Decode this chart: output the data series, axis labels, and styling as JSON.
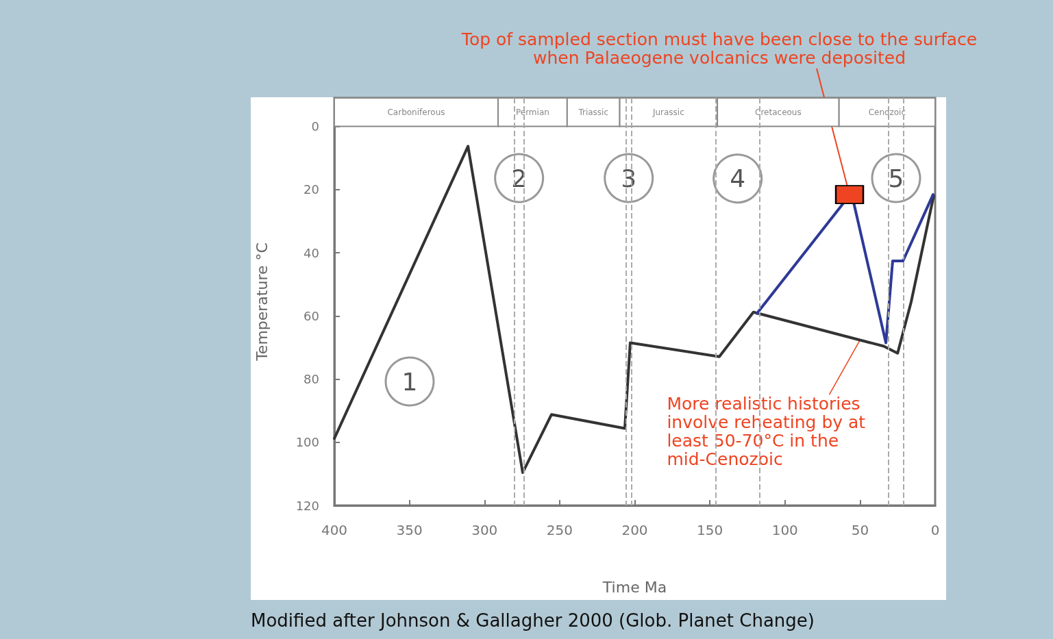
{
  "chart_data": {
    "type": "line",
    "xlabel": "Time Ma",
    "ylabel": "Temperature °C",
    "x": [
      400,
      311,
      274.6,
      255.4,
      206.6,
      203,
      143.7,
      121,
      34.2,
      25,
      16,
      1
    ],
    "series": [
      {
        "color": "#333333",
        "values": [
          98.8,
          6.3,
          109.6,
          91.2,
          95.6,
          68.5,
          72.9,
          58.8,
          69.6,
          71.8,
          55.6,
          22
        ]
      },
      {
        "color": "#2e3a96",
        "x": [
          118.6,
          60.6,
          54.3,
          32.8,
          28.3,
          21.4,
          1.4
        ],
        "values": [
          59.2,
          24,
          24,
          68.5,
          42.6,
          42.6,
          21.6
        ]
      },
      {
        "type": "scatter",
        "color": "#ee4422",
        "marker": "square",
        "x": [
          57
        ],
        "values": [
          21.6
        ]
      }
    ],
    "xlim": [
      400,
      0
    ],
    "xticks": [
      400,
      350,
      300,
      250,
      200,
      150,
      100,
      50,
      0
    ],
    "ylim": [
      120,
      -9
    ],
    "yticks": [
      0,
      20,
      40,
      60,
      80,
      100,
      120
    ],
    "grid": false,
    "line_style": "solid",
    "marker": "none",
    "bands": [
      {
        "axis": "x",
        "from": 400,
        "to": 291,
        "label": "Carboniferous",
        "color": "#ffffff"
      },
      {
        "axis": "x",
        "from": 291,
        "to": 245,
        "label": "Permian",
        "color": "#ffffff"
      },
      {
        "axis": "x",
        "from": 245,
        "to": 210,
        "label": "Triassic",
        "color": "#ffffff"
      },
      {
        "axis": "x",
        "from": 210,
        "to": 145,
        "label": "Jurassic",
        "color": "#ffffff"
      },
      {
        "axis": "x",
        "from": 145,
        "to": 64,
        "label": "Cretaceous",
        "color": "#ffffff"
      },
      {
        "axis": "x",
        "from": 64,
        "to": 0,
        "label": "Cenozoic",
        "color": "#ffffff"
      }
    ],
    "ref_lines": [
      {
        "axis": "x",
        "value": 280,
        "color": "#aaaaaa",
        "line_style": "dashed"
      },
      {
        "axis": "x",
        "value": 274,
        "color": "#aaaaaa",
        "line_style": "dashed"
      },
      {
        "axis": "x",
        "value": 206,
        "color": "#aaaaaa",
        "line_style": "dashed"
      },
      {
        "axis": "x",
        "value": 202,
        "color": "#aaaaaa",
        "line_style": "dashed"
      },
      {
        "axis": "x",
        "value": 146,
        "color": "#aaaaaa",
        "line_style": "dashed"
      },
      {
        "axis": "x",
        "value": 117,
        "color": "#aaaaaa",
        "line_style": "dashed"
      },
      {
        "axis": "x",
        "value": 31,
        "color": "#aaaaaa",
        "line_style": "dashed"
      },
      {
        "axis": "x",
        "value": 21,
        "color": "#aaaaaa",
        "line_style": "dashed"
      }
    ],
    "annotations": [
      "1",
      "2",
      "3",
      "4",
      "5",
      {
        "text": "Top of sampled section must have been close to the surface\nwhen Palaeogene volcanics were deposited",
        "x": 57,
        "y": 21.6
      },
      {
        "text": "More realistic histories\ninvolve reheating by at\nleast 50-70°C in the\nmid-Cenozoic",
        "x": 50,
        "y": 67.6
      },
      "Modified after Johnson & Gallagher 2000 (Glob. Planet Change)"
    ]
  }
}
